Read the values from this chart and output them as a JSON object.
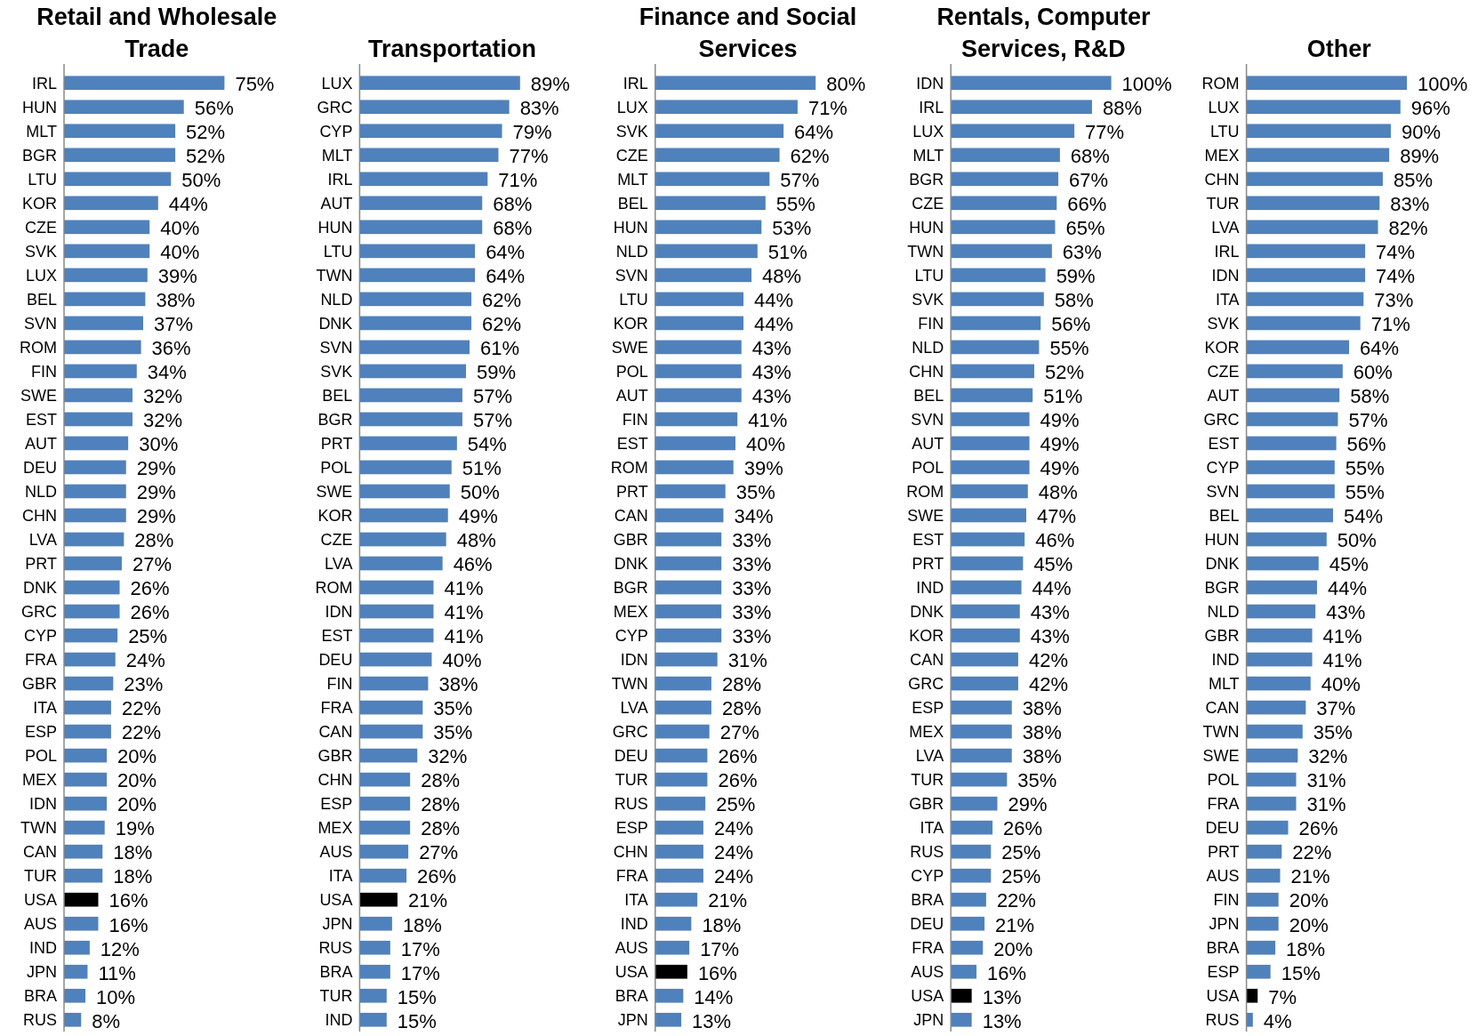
{
  "chart_data": [
    {
      "type": "bar",
      "orientation": "horizontal",
      "title": "Retail and Wholesale Trade",
      "categories": [
        "IRL",
        "HUN",
        "MLT",
        "BGR",
        "LTU",
        "KOR",
        "CZE",
        "SVK",
        "LUX",
        "BEL",
        "SVN",
        "ROM",
        "FIN",
        "SWE",
        "EST",
        "AUT",
        "DEU",
        "NLD",
        "CHN",
        "LVA",
        "PRT",
        "DNK",
        "GRC",
        "CYP",
        "FRA",
        "GBR",
        "ITA",
        "ESP",
        "POL",
        "MEX",
        "IDN",
        "TWN",
        "CAN",
        "TUR",
        "USA",
        "AUS",
        "IND",
        "JPN",
        "BRA",
        "RUS"
      ],
      "values": [
        75,
        56,
        52,
        52,
        50,
        44,
        40,
        40,
        39,
        38,
        37,
        36,
        34,
        32,
        32,
        30,
        29,
        29,
        29,
        28,
        27,
        26,
        26,
        25,
        24,
        23,
        22,
        22,
        20,
        20,
        20,
        19,
        18,
        18,
        16,
        16,
        12,
        11,
        10,
        8
      ],
      "value_labels": [
        "75%",
        "56%",
        "52%",
        "52%",
        "50%",
        "44%",
        "40%",
        "40%",
        "39%",
        "38%",
        "37%",
        "36%",
        "34%",
        "32%",
        "32%",
        "30%",
        "29%",
        "29%",
        "29%",
        "28%",
        "27%",
        "26%",
        "26%",
        "25%",
        "24%",
        "23%",
        "22%",
        "22%",
        "20%",
        "20%",
        "20%",
        "19%",
        "18%",
        "18%",
        "16%",
        "16%",
        "12%",
        "11%",
        "10%",
        "8%"
      ],
      "colors": [
        "#4f81bd",
        "#4f81bd",
        "#4f81bd",
        "#4f81bd",
        "#4f81bd",
        "#4f81bd",
        "#4f81bd",
        "#4f81bd",
        "#4f81bd",
        "#4f81bd",
        "#4f81bd",
        "#4f81bd",
        "#4f81bd",
        "#4f81bd",
        "#4f81bd",
        "#4f81bd",
        "#4f81bd",
        "#4f81bd",
        "#4f81bd",
        "#4f81bd",
        "#4f81bd",
        "#4f81bd",
        "#4f81bd",
        "#4f81bd",
        "#4f81bd",
        "#4f81bd",
        "#4f81bd",
        "#4f81bd",
        "#4f81bd",
        "#4f81bd",
        "#4f81bd",
        "#4f81bd",
        "#4f81bd",
        "#4f81bd",
        "#000000",
        "#4f81bd",
        "#4f81bd",
        "#4f81bd",
        "#4f81bd",
        "#4f81bd"
      ]
    },
    {
      "type": "bar",
      "orientation": "horizontal",
      "title": "Transportation",
      "categories": [
        "LUX",
        "GRC",
        "CYP",
        "MLT",
        "IRL",
        "AUT",
        "HUN",
        "LTU",
        "TWN",
        "NLD",
        "DNK",
        "SVN",
        "SVK",
        "BEL",
        "BGR",
        "PRT",
        "POL",
        "SWE",
        "KOR",
        "CZE",
        "LVA",
        "ROM",
        "IDN",
        "EST",
        "DEU",
        "FIN",
        "FRA",
        "CAN",
        "GBR",
        "CHN",
        "ESP",
        "MEX",
        "AUS",
        "ITA",
        "USA",
        "JPN",
        "RUS",
        "BRA",
        "TUR",
        "IND"
      ],
      "values": [
        89,
        83,
        79,
        77,
        71,
        68,
        68,
        64,
        64,
        62,
        62,
        61,
        59,
        57,
        57,
        54,
        51,
        50,
        49,
        48,
        46,
        41,
        41,
        41,
        40,
        38,
        35,
        35,
        32,
        28,
        28,
        28,
        27,
        26,
        21,
        18,
        17,
        17,
        15,
        15
      ],
      "value_labels": [
        "89%",
        "83%",
        "79%",
        "77%",
        "71%",
        "68%",
        "68%",
        "64%",
        "64%",
        "62%",
        "62%",
        "61%",
        "59%",
        "57%",
        "57%",
        "54%",
        "51%",
        "50%",
        "49%",
        "48%",
        "46%",
        "41%",
        "41%",
        "41%",
        "40%",
        "38%",
        "35%",
        "35%",
        "32%",
        "28%",
        "28%",
        "28%",
        "27%",
        "26%",
        "21%",
        "18%",
        "17%",
        "17%",
        "15%",
        "15%"
      ],
      "colors": [
        "#4f81bd",
        "#4f81bd",
        "#4f81bd",
        "#4f81bd",
        "#4f81bd",
        "#4f81bd",
        "#4f81bd",
        "#4f81bd",
        "#4f81bd",
        "#4f81bd",
        "#4f81bd",
        "#4f81bd",
        "#4f81bd",
        "#4f81bd",
        "#4f81bd",
        "#4f81bd",
        "#4f81bd",
        "#4f81bd",
        "#4f81bd",
        "#4f81bd",
        "#4f81bd",
        "#4f81bd",
        "#4f81bd",
        "#4f81bd",
        "#4f81bd",
        "#4f81bd",
        "#4f81bd",
        "#4f81bd",
        "#4f81bd",
        "#4f81bd",
        "#4f81bd",
        "#4f81bd",
        "#4f81bd",
        "#4f81bd",
        "#000000",
        "#4f81bd",
        "#4f81bd",
        "#4f81bd",
        "#4f81bd",
        "#4f81bd"
      ]
    },
    {
      "type": "bar",
      "orientation": "horizontal",
      "title": "Finance and Social Services",
      "categories": [
        "IRL",
        "LUX",
        "SVK",
        "CZE",
        "MLT",
        "BEL",
        "HUN",
        "NLD",
        "SVN",
        "LTU",
        "KOR",
        "SWE",
        "POL",
        "AUT",
        "FIN",
        "EST",
        "ROM",
        "PRT",
        "CAN",
        "GBR",
        "DNK",
        "BGR",
        "MEX",
        "CYP",
        "IDN",
        "TWN",
        "LVA",
        "GRC",
        "DEU",
        "TUR",
        "RUS",
        "ESP",
        "CHN",
        "FRA",
        "ITA",
        "IND",
        "AUS",
        "USA",
        "BRA",
        "JPN"
      ],
      "values": [
        80,
        71,
        64,
        62,
        57,
        55,
        53,
        51,
        48,
        44,
        44,
        43,
        43,
        43,
        41,
        40,
        39,
        35,
        34,
        33,
        33,
        33,
        33,
        33,
        31,
        28,
        28,
        27,
        26,
        26,
        25,
        24,
        24,
        24,
        21,
        18,
        17,
        16,
        14,
        13
      ],
      "value_labels": [
        "80%",
        "71%",
        "64%",
        "62%",
        "57%",
        "55%",
        "53%",
        "51%",
        "48%",
        "44%",
        "44%",
        "43%",
        "43%",
        "43%",
        "41%",
        "40%",
        "39%",
        "35%",
        "34%",
        "33%",
        "33%",
        "33%",
        "33%",
        "33%",
        "31%",
        "28%",
        "28%",
        "27%",
        "26%",
        "26%",
        "25%",
        "24%",
        "24%",
        "24%",
        "21%",
        "18%",
        "17%",
        "16%",
        "14%",
        "13%"
      ],
      "colors": [
        "#4f81bd",
        "#4f81bd",
        "#4f81bd",
        "#4f81bd",
        "#4f81bd",
        "#4f81bd",
        "#4f81bd",
        "#4f81bd",
        "#4f81bd",
        "#4f81bd",
        "#4f81bd",
        "#4f81bd",
        "#4f81bd",
        "#4f81bd",
        "#4f81bd",
        "#4f81bd",
        "#4f81bd",
        "#4f81bd",
        "#4f81bd",
        "#4f81bd",
        "#4f81bd",
        "#4f81bd",
        "#4f81bd",
        "#4f81bd",
        "#4f81bd",
        "#4f81bd",
        "#4f81bd",
        "#4f81bd",
        "#4f81bd",
        "#4f81bd",
        "#4f81bd",
        "#4f81bd",
        "#4f81bd",
        "#4f81bd",
        "#4f81bd",
        "#4f81bd",
        "#4f81bd",
        "#000000",
        "#4f81bd",
        "#4f81bd"
      ]
    },
    {
      "type": "bar",
      "orientation": "horizontal",
      "title": "Rentals, Computer Services, R&D",
      "categories": [
        "IDN",
        "IRL",
        "LUX",
        "MLT",
        "BGR",
        "CZE",
        "HUN",
        "TWN",
        "LTU",
        "SVK",
        "FIN",
        "NLD",
        "CHN",
        "BEL",
        "SVN",
        "AUT",
        "POL",
        "ROM",
        "SWE",
        "EST",
        "PRT",
        "IND",
        "DNK",
        "KOR",
        "CAN",
        "GRC",
        "ESP",
        "MEX",
        "LVA",
        "TUR",
        "GBR",
        "ITA",
        "RUS",
        "CYP",
        "BRA",
        "DEU",
        "FRA",
        "AUS",
        "USA",
        "JPN"
      ],
      "values": [
        100,
        88,
        77,
        68,
        67,
        66,
        65,
        63,
        59,
        58,
        56,
        55,
        52,
        51,
        49,
        49,
        49,
        48,
        47,
        46,
        45,
        44,
        43,
        43,
        42,
        42,
        38,
        38,
        38,
        35,
        29,
        26,
        25,
        25,
        22,
        21,
        20,
        16,
        13,
        13
      ],
      "value_labels": [
        "100%",
        "88%",
        "77%",
        "68%",
        "67%",
        "66%",
        "65%",
        "63%",
        "59%",
        "58%",
        "56%",
        "55%",
        "52%",
        "51%",
        "49%",
        "49%",
        "49%",
        "48%",
        "47%",
        "46%",
        "45%",
        "44%",
        "43%",
        "43%",
        "42%",
        "42%",
        "38%",
        "38%",
        "38%",
        "35%",
        "29%",
        "26%",
        "25%",
        "25%",
        "22%",
        "21%",
        "20%",
        "16%",
        "13%",
        "13%"
      ],
      "colors": [
        "#4f81bd",
        "#4f81bd",
        "#4f81bd",
        "#4f81bd",
        "#4f81bd",
        "#4f81bd",
        "#4f81bd",
        "#4f81bd",
        "#4f81bd",
        "#4f81bd",
        "#4f81bd",
        "#4f81bd",
        "#4f81bd",
        "#4f81bd",
        "#4f81bd",
        "#4f81bd",
        "#4f81bd",
        "#4f81bd",
        "#4f81bd",
        "#4f81bd",
        "#4f81bd",
        "#4f81bd",
        "#4f81bd",
        "#4f81bd",
        "#4f81bd",
        "#4f81bd",
        "#4f81bd",
        "#4f81bd",
        "#4f81bd",
        "#4f81bd",
        "#4f81bd",
        "#4f81bd",
        "#4f81bd",
        "#4f81bd",
        "#4f81bd",
        "#4f81bd",
        "#4f81bd",
        "#4f81bd",
        "#000000",
        "#4f81bd"
      ]
    },
    {
      "type": "bar",
      "orientation": "horizontal",
      "title": "Other",
      "categories": [
        "ROM",
        "LUX",
        "LTU",
        "MEX",
        "CHN",
        "TUR",
        "LVA",
        "IRL",
        "IDN",
        "ITA",
        "SVK",
        "KOR",
        "CZE",
        "AUT",
        "GRC",
        "EST",
        "CYP",
        "SVN",
        "BEL",
        "HUN",
        "DNK",
        "BGR",
        "NLD",
        "GBR",
        "IND",
        "MLT",
        "CAN",
        "TWN",
        "SWE",
        "POL",
        "FRA",
        "DEU",
        "PRT",
        "AUS",
        "FIN",
        "JPN",
        "BRA",
        "ESP",
        "USA",
        "RUS"
      ],
      "values": [
        100,
        96,
        90,
        89,
        85,
        83,
        82,
        74,
        74,
        73,
        71,
        64,
        60,
        58,
        57,
        56,
        55,
        55,
        54,
        50,
        45,
        44,
        43,
        41,
        41,
        40,
        37,
        35,
        32,
        31,
        31,
        26,
        22,
        21,
        20,
        20,
        18,
        15,
        7,
        4
      ],
      "value_labels": [
        "100%",
        "96%",
        "90%",
        "89%",
        "85%",
        "83%",
        "82%",
        "74%",
        "74%",
        "73%",
        "71%",
        "64%",
        "60%",
        "58%",
        "57%",
        "56%",
        "55%",
        "55%",
        "54%",
        "50%",
        "45%",
        "44%",
        "43%",
        "41%",
        "41%",
        "40%",
        "37%",
        "35%",
        "32%",
        "31%",
        "31%",
        "26%",
        "22%",
        "21%",
        "20%",
        "20%",
        "18%",
        "15%",
        "7%",
        "4%"
      ],
      "colors": [
        "#4f81bd",
        "#4f81bd",
        "#4f81bd",
        "#4f81bd",
        "#4f81bd",
        "#4f81bd",
        "#4f81bd",
        "#4f81bd",
        "#4f81bd",
        "#4f81bd",
        "#4f81bd",
        "#4f81bd",
        "#4f81bd",
        "#4f81bd",
        "#4f81bd",
        "#4f81bd",
        "#4f81bd",
        "#4f81bd",
        "#4f81bd",
        "#4f81bd",
        "#4f81bd",
        "#4f81bd",
        "#4f81bd",
        "#4f81bd",
        "#4f81bd",
        "#4f81bd",
        "#4f81bd",
        "#4f81bd",
        "#4f81bd",
        "#4f81bd",
        "#4f81bd",
        "#4f81bd",
        "#4f81bd",
        "#4f81bd",
        "#4f81bd",
        "#4f81bd",
        "#4f81bd",
        "#4f81bd",
        "#000000",
        "#4f81bd"
      ]
    }
  ]
}
